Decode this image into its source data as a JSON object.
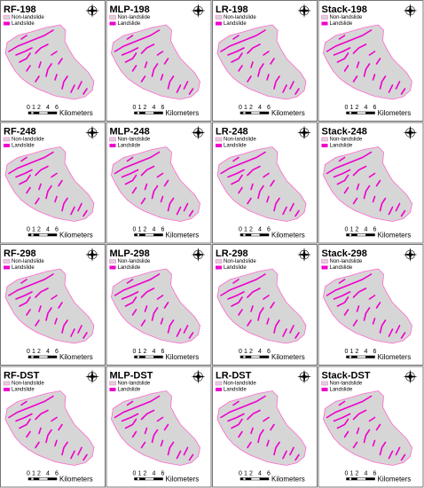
{
  "panels": [
    {
      "title": "RF-198",
      "legend": [
        "Non-landslide",
        "Landslide"
      ],
      "scale_labels": [
        "0",
        "1",
        "2",
        "4",
        "6"
      ],
      "scale_unit": "Kilometers"
    },
    {
      "title": "MLP-198",
      "legend": [
        "Non-landslide",
        "Landslide"
      ],
      "scale_labels": [
        "0",
        "1",
        "2",
        "4",
        "6"
      ],
      "scale_unit": "Kilometers"
    },
    {
      "title": "LR-198",
      "legend": [
        "Non-landslide",
        "Landslide"
      ],
      "scale_labels": [
        "0",
        "1",
        "2",
        "4",
        "6"
      ],
      "scale_unit": "Kilometers"
    },
    {
      "title": "Stack-198",
      "legend": [
        "Non-landslide",
        "Landslide"
      ],
      "scale_labels": [
        "0",
        "1",
        "2",
        "4",
        "6"
      ],
      "scale_unit": "Kilometers"
    },
    {
      "title": "RF-248",
      "legend": [
        "Non-landslide",
        "Landslide"
      ],
      "scale_labels": [
        "0",
        "1",
        "2",
        "4",
        "6"
      ],
      "scale_unit": "Kilometers"
    },
    {
      "title": "MLP-248",
      "legend": [
        "Non-landslide",
        "Landslide"
      ],
      "scale_labels": [
        "0",
        "1",
        "2",
        "4",
        "6"
      ],
      "scale_unit": "Kilometers"
    },
    {
      "title": "LR-248",
      "legend": [
        "Non-landslide",
        "Landslide"
      ],
      "scale_labels": [
        "0",
        "1",
        "2",
        "4",
        "6"
      ],
      "scale_unit": "Kilometers"
    },
    {
      "title": "Stack-248",
      "legend": [
        "Non-landslide",
        "Landslide"
      ],
      "scale_labels": [
        "0",
        "1",
        "2",
        "4",
        "6"
      ],
      "scale_unit": "Kilometers"
    },
    {
      "title": "RF-298",
      "legend": [
        "Non-landslide",
        "Landslide"
      ],
      "scale_labels": [
        "0",
        "1",
        "2",
        "4",
        "6"
      ],
      "scale_unit": "Kilometers"
    },
    {
      "title": "MLP-298",
      "legend": [
        "Non-landslide",
        "Landslide"
      ],
      "scale_labels": [
        "0",
        "1",
        "2",
        "4",
        "6"
      ],
      "scale_unit": "Kilometers"
    },
    {
      "title": "LR-298",
      "legend": [
        "Non-landslide",
        "Landslide"
      ],
      "scale_labels": [
        "0",
        "1",
        "2",
        "4",
        "6"
      ],
      "scale_unit": "Kilometers"
    },
    {
      "title": "Stack-298",
      "legend": [
        "Non-landslide",
        "Landslide"
      ],
      "scale_labels": [
        "0",
        "1",
        "2",
        "4",
        "6"
      ],
      "scale_unit": "Kilometers"
    },
    {
      "title": "RF-DST",
      "legend": [
        "Non-landslide",
        "Landslide"
      ],
      "scale_labels": [
        "0",
        "1",
        "2",
        "4",
        "6"
      ],
      "scale_unit": "Kilometers"
    },
    {
      "title": "MLP-DST",
      "legend": [
        "Non-landslide",
        "Landslide"
      ],
      "scale_labels": [
        "0",
        "1",
        "2",
        "4",
        "6"
      ],
      "scale_unit": "Kilometers"
    },
    {
      "title": "LR-DST",
      "legend": [
        "Non-landslide",
        "Landslide"
      ],
      "scale_labels": [
        "0",
        "1",
        "2",
        "4",
        "6"
      ],
      "scale_unit": "Kilometers"
    },
    {
      "title": "Stack-DST",
      "legend": [
        "Non-landslide",
        "Landslide"
      ],
      "scale_labels": [
        "0",
        "1",
        "2",
        "4",
        "6"
      ],
      "scale_unit": "Kilometers"
    }
  ]
}
